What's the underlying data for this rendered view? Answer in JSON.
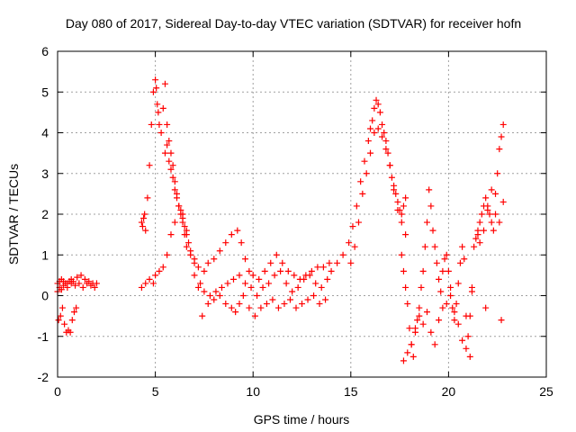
{
  "chart_data": {
    "type": "scatter",
    "title": "Day 080 of 2017, Sidereal Day-to-day VTEC variation (SDTVAR) for receiver hofn",
    "xlabel": "GPS time / hours",
    "ylabel": "SDTVAR / TECUs",
    "xlim": [
      0,
      25
    ],
    "ylim": [
      -2,
      6
    ],
    "xticks": [
      0,
      5,
      10,
      15,
      20,
      25
    ],
    "yticks": [
      -2,
      -1,
      0,
      1,
      2,
      3,
      4,
      5,
      6
    ],
    "xtick_labels": [
      "0",
      "5",
      "10",
      "15",
      "20",
      "25"
    ],
    "ytick_labels": [
      "-2",
      "-1",
      "0",
      "1",
      "2",
      "3",
      "4",
      "5",
      "6"
    ],
    "grid": true,
    "marker": "+",
    "color": "#ff0000",
    "series": [
      {
        "name": "SDTVAR",
        "x": [
          0.0,
          0.1,
          0.2,
          0.3,
          0.4,
          0.5,
          0.6,
          0.7,
          0.8,
          1.0,
          1.2,
          1.4,
          1.6,
          1.8,
          2.0,
          0.05,
          0.15,
          0.25,
          0.35,
          0.45,
          0.55,
          0.65,
          0.75,
          0.85,
          0.95,
          0.0,
          0.1,
          0.2,
          0.3,
          0.5,
          0.7,
          0.9,
          1.1,
          1.3,
          1.5,
          1.7,
          1.9,
          4.3,
          4.35,
          4.4,
          4.45,
          4.5,
          4.6,
          4.7,
          4.8,
          4.9,
          5.0,
          5.05,
          5.1,
          5.15,
          5.2,
          5.3,
          5.4,
          5.5,
          5.6,
          5.7,
          5.8,
          5.9,
          6.0,
          6.1,
          6.2,
          6.3,
          6.4,
          6.5,
          6.6,
          6.8,
          7.0,
          4.3,
          4.5,
          4.7,
          4.9,
          5.0,
          5.2,
          5.4,
          5.6,
          5.8,
          6.0,
          6.2,
          6.4,
          6.6,
          6.8,
          7.0,
          7.2,
          5.5,
          5.6,
          5.7,
          5.8,
          5.9,
          6.0,
          6.1,
          6.2,
          6.3,
          6.4,
          6.5,
          6.6,
          6.7,
          7.0,
          7.3,
          7.5,
          7.7,
          8.0,
          8.3,
          8.6,
          8.9,
          9.2,
          9.4,
          9.6,
          9.8,
          10.0,
          10.3,
          10.6,
          10.9,
          11.2,
          11.5,
          11.8,
          12.1,
          12.4,
          12.7,
          13.0,
          13.3,
          13.6,
          13.9,
          7.2,
          7.5,
          7.8,
          8.1,
          8.4,
          8.7,
          9.0,
          9.3,
          9.6,
          9.9,
          10.2,
          10.5,
          10.8,
          11.1,
          11.4,
          11.7,
          12.0,
          12.3,
          12.6,
          12.9,
          13.2,
          13.5,
          13.8,
          7.4,
          7.7,
          8.0,
          8.3,
          8.6,
          8.9,
          9.1,
          9.3,
          9.5,
          9.8,
          10.1,
          10.4,
          10.7,
          11.0,
          11.3,
          11.6,
          11.9,
          12.2,
          12.5,
          12.8,
          13.1,
          13.4,
          13.7,
          14.0,
          14.3,
          14.6,
          14.9,
          15.1,
          15.3,
          15.5,
          15.7,
          15.9,
          16.0,
          16.1,
          16.2,
          16.3,
          16.4,
          16.5,
          16.6,
          16.7,
          16.8,
          16.9,
          17.0,
          17.1,
          17.2,
          17.3,
          17.4,
          17.5,
          17.6,
          17.7,
          17.8,
          15.0,
          15.2,
          15.4,
          15.6,
          15.8,
          16.0,
          16.2,
          16.4,
          16.6,
          16.8,
          17.0,
          17.2,
          17.4,
          17.6,
          17.8,
          17.6,
          17.7,
          17.8,
          17.9,
          18.0,
          18.1,
          18.2,
          18.3,
          18.4,
          18.5,
          18.6,
          18.7,
          18.8,
          18.9,
          19.0,
          19.1,
          19.2,
          19.3,
          19.4,
          19.5,
          19.6,
          19.7,
          19.8,
          19.9,
          20.0,
          20.1,
          20.2,
          20.3,
          20.4,
          20.5,
          20.6,
          20.7,
          20.8,
          20.9,
          21.0,
          21.1,
          21.2,
          17.7,
          17.9,
          18.1,
          18.3,
          18.5,
          18.7,
          18.9,
          19.1,
          19.3,
          19.5,
          19.7,
          19.9,
          20.1,
          20.3,
          20.5,
          20.7,
          20.9,
          21.1,
          21.3,
          21.4,
          21.5,
          21.6,
          21.7,
          21.8,
          21.9,
          22.0,
          22.1,
          22.2,
          22.3,
          22.4,
          22.5,
          22.6,
          22.7,
          22.8,
          21.5,
          21.6,
          21.8,
          22.0,
          22.2,
          22.4,
          22.6,
          22.8,
          21.2,
          21.9,
          22.7
        ],
        "y": [
          0.3,
          0.35,
          0.4,
          0.35,
          0.3,
          0.3,
          0.35,
          0.4,
          0.35,
          0.45,
          0.5,
          0.4,
          0.35,
          0.3,
          0.3,
          -0.6,
          -0.5,
          -0.3,
          -0.7,
          -0.9,
          -0.85,
          -0.9,
          -0.6,
          -0.4,
          -0.3,
          0.1,
          0.2,
          0.15,
          0.25,
          0.2,
          0.3,
          0.25,
          0.3,
          0.2,
          0.3,
          0.25,
          0.2,
          1.8,
          1.7,
          1.9,
          2.0,
          1.6,
          2.4,
          3.2,
          4.2,
          5.0,
          5.3,
          5.1,
          4.7,
          4.5,
          4.2,
          4.0,
          4.6,
          5.2,
          4.2,
          3.8,
          3.5,
          3.2,
          2.8,
          2.5,
          2.2,
          2.0,
          1.8,
          1.5,
          1.2,
          1.0,
          0.8,
          0.2,
          0.3,
          0.4,
          0.3,
          0.5,
          0.6,
          0.7,
          1.0,
          1.5,
          1.8,
          2.2,
          2.0,
          1.6,
          1.1,
          0.9,
          0.7,
          3.5,
          3.7,
          3.3,
          3.1,
          2.9,
          2.6,
          2.4,
          2.2,
          2.1,
          1.9,
          1.7,
          1.5,
          1.3,
          0.5,
          0.3,
          0.6,
          0.8,
          0.9,
          1.1,
          1.3,
          1.5,
          1.6,
          1.3,
          0.9,
          0.6,
          0.5,
          0.4,
          0.6,
          0.8,
          1.0,
          0.8,
          0.6,
          0.5,
          0.4,
          0.5,
          0.6,
          0.7,
          0.7,
          0.8,
          0.2,
          0.1,
          0.0,
          0.1,
          0.2,
          0.3,
          0.4,
          0.5,
          0.3,
          0.2,
          0.0,
          0.2,
          0.3,
          0.5,
          0.6,
          0.3,
          0.1,
          0.2,
          0.4,
          0.5,
          0.3,
          0.2,
          0.4,
          -0.5,
          -0.2,
          -0.1,
          0.0,
          -0.2,
          -0.3,
          -0.4,
          -0.2,
          0.0,
          -0.3,
          -0.5,
          -0.3,
          -0.2,
          -0.1,
          -0.3,
          -0.2,
          -0.1,
          -0.3,
          -0.2,
          -0.1,
          0.0,
          -0.2,
          -0.1,
          0.6,
          0.8,
          1.0,
          1.3,
          1.7,
          2.2,
          2.8,
          3.3,
          3.8,
          4.1,
          4.3,
          4.6,
          4.8,
          4.7,
          4.5,
          4.2,
          4.0,
          3.8,
          3.5,
          3.2,
          2.9,
          2.7,
          2.5,
          2.3,
          2.1,
          2.0,
          2.2,
          2.4,
          0.8,
          1.2,
          1.8,
          2.5,
          3.0,
          3.5,
          4.0,
          4.1,
          3.9,
          3.6,
          3.2,
          2.6,
          2.1,
          1.8,
          1.5,
          1.0,
          0.6,
          0.2,
          -0.2,
          -0.8,
          -1.2,
          -1.5,
          -0.9,
          -0.6,
          -0.3,
          0.2,
          0.6,
          1.2,
          1.8,
          2.6,
          2.2,
          1.6,
          1.2,
          0.8,
          0.4,
          0.1,
          0.6,
          0.9,
          1.0,
          0.6,
          0.2,
          -0.3,
          -0.6,
          -0.2,
          0.3,
          0.8,
          1.2,
          0.9,
          -0.5,
          -1.0,
          -0.5,
          0.2,
          -1.6,
          -1.4,
          -1.2,
          -0.8,
          -0.5,
          -0.7,
          -0.4,
          -0.9,
          -1.2,
          -0.6,
          -0.3,
          -0.2,
          0.0,
          -0.4,
          -0.7,
          -1.1,
          -1.3,
          -1.5,
          1.2,
          1.4,
          1.6,
          1.8,
          2.0,
          2.2,
          2.4,
          2.2,
          2.0,
          1.8,
          1.6,
          2.5,
          3.0,
          3.6,
          3.9,
          4.2,
          1.5,
          1.3,
          1.6,
          2.1,
          2.6,
          2.0,
          1.8,
          2.3,
          0.1,
          -0.3,
          -0.6
        ]
      }
    ]
  }
}
